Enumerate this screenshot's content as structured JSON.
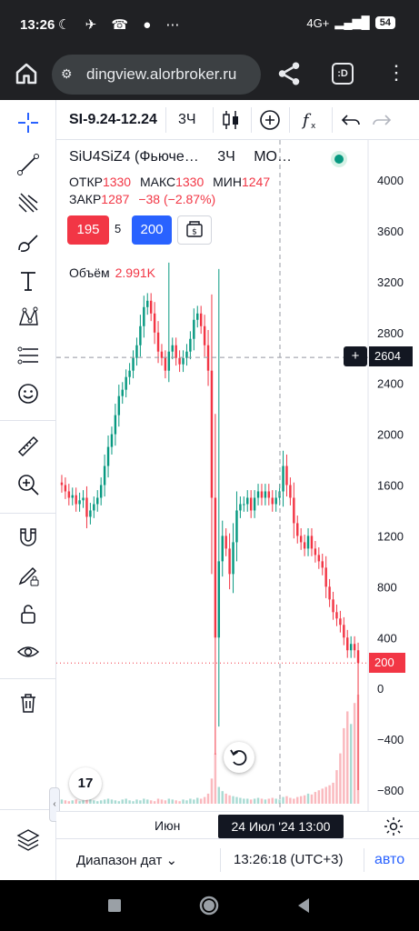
{
  "status": {
    "time": "13:26",
    "network": "4G+",
    "battery": "54",
    "left_icons": [
      "moon-icon",
      "notifications-off-icon",
      "telegram-icon",
      "missed-call-icon",
      "chat-icon",
      "more-dots-icon"
    ],
    "left_icons_text": "☾ ✈ ☎ ● ⋯"
  },
  "browser": {
    "url": "dingview.alorbroker.ru",
    "tab_label": ":D",
    "menu_glyph": "⋮"
  },
  "toolbar": {
    "symbol": "SI-9.24-12.24",
    "interval": "3Ч"
  },
  "left_tools": [
    {
      "name": "crosshair-tool"
    },
    {
      "name": "trend-line-tool"
    },
    {
      "name": "pitchfork-tool"
    },
    {
      "name": "brush-tool"
    },
    {
      "name": "text-tool"
    },
    {
      "name": "pattern-tool"
    },
    {
      "name": "fib-tool"
    },
    {
      "name": "emoji-tool"
    },
    {
      "name": "ruler-tool"
    },
    {
      "name": "zoom-in-tool"
    },
    {
      "name": "magnet-tool"
    },
    {
      "name": "lock-drawings-tool"
    },
    {
      "name": "unlock-tool"
    },
    {
      "name": "hide-drawings-tool"
    },
    {
      "name": "trash-tool"
    },
    {
      "name": "object-tree-tool"
    }
  ],
  "legend": {
    "title": "SiU4SiZ4 (Фьюче…",
    "timeframe": "3Ч",
    "exchange": "МО…",
    "open_label": "ОТКР",
    "open": "1330",
    "high_label": "МАКС",
    "high": "1330",
    "low_label": "МИН",
    "low": "1247",
    "close_label": "ЗАКР",
    "close": "1287",
    "change": "−38 (−2.87%)",
    "sell": "195",
    "spread": "5",
    "buy": "200",
    "volume_label": "Объём",
    "volume": "2.991K"
  },
  "price_axis": {
    "ticks": [
      "4000",
      "3600",
      "3200",
      "2800",
      "2400",
      "2000",
      "1600",
      "1200",
      "800",
      "400",
      "0",
      "−400",
      "−800"
    ],
    "crosshair_price": "2604",
    "last_price": "200",
    "crosshair_symbol": "+"
  },
  "time_axis": {
    "month_label": "Июн",
    "cursor_label": "24 Июл '24   13:00"
  },
  "logo_text": "17",
  "bottom": {
    "range_label": "Диапазон дат",
    "range_chevron": "⌄",
    "clock": "13:26:18 (UTC+3)",
    "auto": "авто"
  },
  "colors": {
    "up": "#089981",
    "down": "#f23645",
    "accent": "#2962ff",
    "dark": "#131722"
  },
  "chart_data": {
    "type": "candlestick",
    "x_label_visible": "Июн",
    "ylim": [
      -900,
      4200
    ],
    "y_ticks": [
      -800,
      -400,
      0,
      400,
      800,
      1200,
      1600,
      2000,
      2400,
      2800,
      3200,
      3600,
      4000
    ],
    "last_price": 200,
    "crosshair_price": 2604,
    "crosshair_time": "24 Июл '24 13:00",
    "close_series_approx": [
      1600,
      1550,
      1500,
      1520,
      1450,
      1480,
      1500,
      1350,
      1400,
      1450,
      1500,
      1600,
      1750,
      1900,
      2000,
      2150,
      2300,
      2350,
      2450,
      2500,
      2600,
      2700,
      2850,
      3000,
      3050,
      2950,
      2800,
      2650,
      2600,
      2500,
      2650,
      2700,
      2600,
      2550,
      2600,
      2650,
      2750,
      2900,
      2950,
      2850,
      2700,
      2500,
      1500,
      400,
      1000,
      1200,
      1100,
      900,
      1150,
      1400,
      1450,
      1450,
      1500,
      1400,
      1500,
      1550,
      1500,
      1550,
      1500,
      1450,
      1500,
      1550,
      1750,
      1600,
      1500,
      1300,
      1200,
      1150,
      1100,
      1200,
      1100,
      1050,
      1000,
      950,
      800,
      700,
      600,
      550,
      500,
      400,
      300,
      350,
      300,
      200
    ],
    "volume_series_approx": [
      5,
      4,
      3,
      4,
      5,
      3,
      4,
      6,
      5,
      4,
      3,
      4,
      5,
      6,
      5,
      4,
      3,
      5,
      6,
      4,
      3,
      5,
      4,
      6,
      5,
      4,
      3,
      6,
      5,
      4,
      6,
      5,
      4,
      3,
      5,
      4,
      6,
      5,
      7,
      6,
      8,
      12,
      30,
      60,
      20,
      15,
      12,
      10,
      9,
      8,
      7,
      6,
      6,
      5,
      6,
      7,
      6,
      5,
      6,
      7,
      6,
      5,
      8,
      9,
      7,
      6,
      8,
      9,
      10,
      12,
      11,
      14,
      16,
      18,
      20,
      22,
      25,
      40,
      60,
      90,
      110,
      95,
      120,
      130
    ]
  }
}
